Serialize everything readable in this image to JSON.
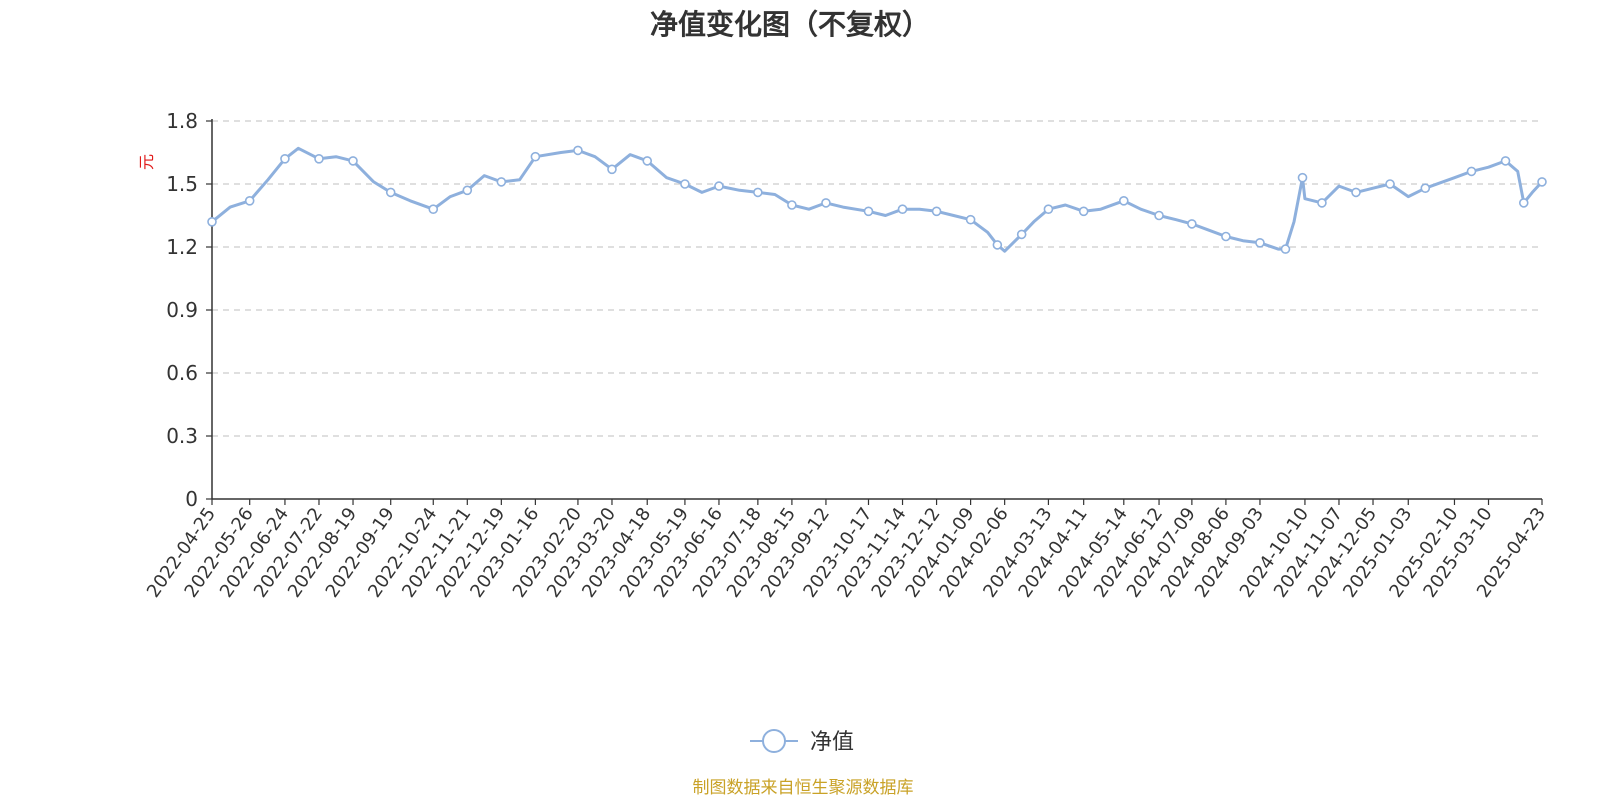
{
  "chart_data": {
    "type": "line",
    "title": "净值变化图（不复权）",
    "ylabel": "元",
    "ylim": [
      0,
      1.8
    ],
    "yticks": [
      "0",
      "0.3",
      "0.6",
      "0.9",
      "1.2",
      "1.5",
      "1.8"
    ],
    "grid": "horizontal-dashed",
    "legend": {
      "position": "bottom-center"
    },
    "x_ticks": [
      "2022-04-25",
      "2022-05-26",
      "2022-06-24",
      "2022-07-22",
      "2022-08-19",
      "2022-09-19",
      "2022-10-24",
      "2022-11-21",
      "2022-12-19",
      "2023-01-16",
      "2023-02-20",
      "2023-03-20",
      "2023-04-18",
      "2023-05-19",
      "2023-06-16",
      "2023-07-18",
      "2023-08-15",
      "2023-09-12",
      "2023-10-17",
      "2023-11-14",
      "2023-12-12",
      "2024-01-09",
      "2024-02-06",
      "2024-03-13",
      "2024-04-11",
      "2024-05-14",
      "2024-06-12",
      "2024-07-09",
      "2024-08-06",
      "2024-09-03",
      "2024-10-10",
      "2024-11-07",
      "2024-12-05",
      "2025-01-03",
      "2025-02-10",
      "2025-03-10",
      "2025-04-23"
    ],
    "series": [
      {
        "name": "净值",
        "color": "#8eb0dd",
        "x": [
          "2022-04-25",
          "2022-05-10",
          "2022-05-26",
          "2022-06-10",
          "2022-06-24",
          "2022-07-05",
          "2022-07-22",
          "2022-08-05",
          "2022-08-19",
          "2022-09-05",
          "2022-09-19",
          "2022-10-05",
          "2022-10-24",
          "2022-11-07",
          "2022-11-21",
          "2022-12-05",
          "2022-12-19",
          "2023-01-03",
          "2023-01-16",
          "2023-02-06",
          "2023-02-20",
          "2023-03-06",
          "2023-03-20",
          "2023-04-04",
          "2023-04-18",
          "2023-05-04",
          "2023-05-19",
          "2023-06-02",
          "2023-06-16",
          "2023-07-03",
          "2023-07-18",
          "2023-08-01",
          "2023-08-15",
          "2023-08-29",
          "2023-09-12",
          "2023-09-26",
          "2023-10-17",
          "2023-10-31",
          "2023-11-14",
          "2023-11-28",
          "2023-12-12",
          "2023-12-26",
          "2024-01-09",
          "2024-01-23",
          "2024-01-31",
          "2024-02-06",
          "2024-02-20",
          "2024-03-01",
          "2024-03-13",
          "2024-03-27",
          "2024-04-11",
          "2024-04-25",
          "2024-05-14",
          "2024-05-28",
          "2024-06-12",
          "2024-06-26",
          "2024-07-09",
          "2024-07-23",
          "2024-08-06",
          "2024-08-20",
          "2024-09-03",
          "2024-09-18",
          "2024-09-24",
          "2024-10-01",
          "2024-10-08",
          "2024-10-10",
          "2024-10-24",
          "2024-11-07",
          "2024-11-21",
          "2024-12-05",
          "2024-12-19",
          "2025-01-03",
          "2025-01-17",
          "2025-02-10",
          "2025-02-24",
          "2025-03-10",
          "2025-03-24",
          "2025-04-03",
          "2025-04-08",
          "2025-04-15",
          "2025-04-23"
        ],
        "values": [
          1.32,
          1.39,
          1.42,
          1.52,
          1.62,
          1.67,
          1.62,
          1.63,
          1.61,
          1.51,
          1.46,
          1.42,
          1.38,
          1.44,
          1.47,
          1.54,
          1.51,
          1.52,
          1.63,
          1.65,
          1.66,
          1.63,
          1.57,
          1.64,
          1.61,
          1.53,
          1.5,
          1.46,
          1.49,
          1.47,
          1.46,
          1.45,
          1.4,
          1.38,
          1.41,
          1.39,
          1.37,
          1.35,
          1.38,
          1.38,
          1.37,
          1.35,
          1.33,
          1.27,
          1.21,
          1.18,
          1.26,
          1.32,
          1.38,
          1.4,
          1.37,
          1.38,
          1.42,
          1.38,
          1.35,
          1.33,
          1.31,
          1.28,
          1.25,
          1.23,
          1.22,
          1.19,
          1.19,
          1.32,
          1.53,
          1.43,
          1.41,
          1.49,
          1.46,
          1.48,
          1.5,
          1.44,
          1.48,
          1.53,
          1.56,
          1.58,
          1.61,
          1.56,
          1.41,
          1.46,
          1.51
        ]
      }
    ],
    "source_note": "制图数据来自恒生聚源数据库"
  }
}
